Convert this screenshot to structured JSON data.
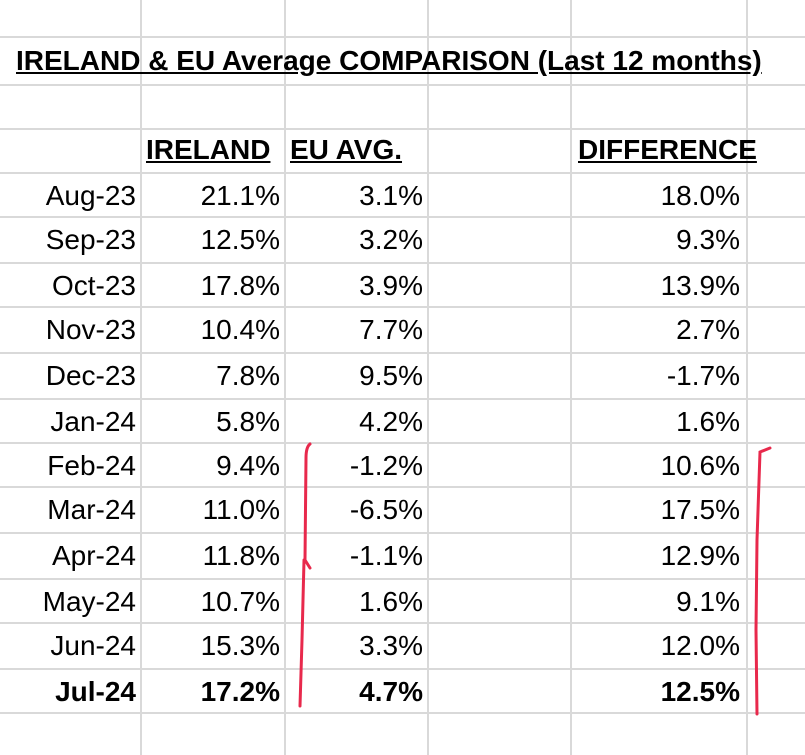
{
  "sheet": {
    "title": "IRELAND & EU Average COMPARISON (Last 12 months)",
    "headers": {
      "ireland": "IRELAND",
      "eu_avg": "EU AVG.",
      "difference": "DIFFERENCE"
    },
    "rows": [
      {
        "month": "Aug-23",
        "ireland": "21.1%",
        "eu_avg": "3.1%",
        "difference": "18.0%"
      },
      {
        "month": "Sep-23",
        "ireland": "12.5%",
        "eu_avg": "3.2%",
        "difference": "9.3%"
      },
      {
        "month": "Oct-23",
        "ireland": "17.8%",
        "eu_avg": "3.9%",
        "difference": "13.9%"
      },
      {
        "month": "Nov-23",
        "ireland": "10.4%",
        "eu_avg": "7.7%",
        "difference": "2.7%"
      },
      {
        "month": "Dec-23",
        "ireland": "7.8%",
        "eu_avg": "9.5%",
        "difference": "-1.7%"
      },
      {
        "month": "Jan-24",
        "ireland": "5.8%",
        "eu_avg": "4.2%",
        "difference": "1.6%"
      },
      {
        "month": "Feb-24",
        "ireland": "9.4%",
        "eu_avg": "-1.2%",
        "difference": "10.6%"
      },
      {
        "month": "Mar-24",
        "ireland": "11.0%",
        "eu_avg": "-6.5%",
        "difference": "17.5%"
      },
      {
        "month": "Apr-24",
        "ireland": "11.8%",
        "eu_avg": "-1.1%",
        "difference": "12.9%"
      },
      {
        "month": "May-24",
        "ireland": "10.7%",
        "eu_avg": "1.6%",
        "difference": "9.1%"
      },
      {
        "month": "Jun-24",
        "ireland": "15.3%",
        "eu_avg": "3.3%",
        "difference": "12.0%"
      },
      {
        "month": "Jul-24",
        "ireland": "17.2%",
        "eu_avg": "4.7%",
        "difference": "12.5%",
        "bold": true
      }
    ]
  },
  "colors": {
    "gridline": "#d9d9d9",
    "annotation": "#e8294c",
    "text": "#000000"
  }
}
